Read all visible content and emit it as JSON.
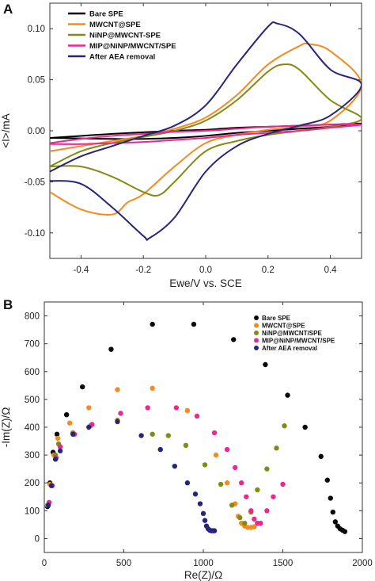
{
  "panels": [
    {
      "letter": "A",
      "type": "line",
      "xlabel": "Ewe/V vs. SCE",
      "ylabel": "<I>/mA",
      "xlim": [
        -0.5,
        0.5
      ],
      "ylim": [
        -0.125,
        0.125
      ],
      "xticks": [
        -0.4,
        -0.2,
        0.0,
        0.2,
        0.4
      ],
      "xtick_labels": [
        "-0.4",
        "-0.2",
        "0.0",
        "0.2",
        "0.4"
      ],
      "yticks": [
        -0.1,
        -0.05,
        0.0,
        0.05,
        0.1
      ],
      "ytick_labels": [
        "-0.10",
        "-0.05",
        "0.00",
        "0.05",
        "0.10"
      ],
      "legend_position": "top-left",
      "legend_style": "line",
      "grid": false,
      "series": [
        {
          "name": "Bare SPE",
          "color": "#000000",
          "x": [
            -0.5,
            -0.4,
            -0.3,
            -0.2,
            -0.1,
            0.0,
            0.05,
            0.1,
            0.2,
            0.3,
            0.4,
            0.5,
            0.4,
            0.3,
            0.2,
            0.1,
            0.0,
            -0.1,
            -0.2,
            -0.3,
            -0.4,
            -0.5
          ],
          "y": [
            -0.007,
            -0.005,
            -0.003,
            -0.0015,
            0.0,
            0.001,
            0.002,
            0.003,
            0.004,
            0.005,
            0.006,
            0.007,
            0.004,
            0.002,
            0.0,
            -0.002,
            -0.005,
            -0.007,
            -0.008,
            -0.008,
            -0.0075,
            -0.007
          ]
        },
        {
          "name": "MWCNT@SPE",
          "color": "#f68a1e",
          "x": [
            -0.5,
            -0.4,
            -0.3,
            -0.2,
            -0.1,
            0.0,
            0.1,
            0.2,
            0.3,
            0.33,
            0.4,
            0.5,
            0.4,
            0.3,
            0.2,
            0.1,
            0.0,
            -0.1,
            -0.2,
            -0.25,
            -0.3,
            -0.4,
            -0.5
          ],
          "y": [
            -0.02,
            -0.015,
            -0.01,
            -0.005,
            0.002,
            0.013,
            0.035,
            0.065,
            0.083,
            0.085,
            0.078,
            0.045,
            0.01,
            0.004,
            0.001,
            -0.004,
            -0.012,
            -0.035,
            -0.062,
            -0.07,
            -0.082,
            -0.077,
            -0.06
          ]
        },
        {
          "name": "NiNP@MWCNT-SPE",
          "color": "#828c12",
          "x": [
            -0.5,
            -0.4,
            -0.3,
            -0.2,
            -0.1,
            0.0,
            0.1,
            0.2,
            0.25,
            0.3,
            0.4,
            0.5,
            0.4,
            0.3,
            0.2,
            0.1,
            0.0,
            -0.1,
            -0.15,
            -0.2,
            -0.3,
            -0.4,
            -0.5
          ],
          "y": [
            -0.035,
            -0.02,
            -0.012,
            -0.006,
            0.0,
            0.01,
            0.03,
            0.058,
            0.065,
            0.06,
            0.03,
            0.012,
            0.004,
            0.0,
            -0.004,
            -0.01,
            -0.02,
            -0.05,
            -0.063,
            -0.06,
            -0.045,
            -0.035,
            -0.035
          ]
        },
        {
          "name": "MIP@NiNP/MWCNT/SPE",
          "color": "#ec2794",
          "x": [
            -0.5,
            -0.4,
            -0.3,
            -0.2,
            -0.1,
            0.0,
            0.1,
            0.2,
            0.3,
            0.4,
            0.5,
            0.4,
            0.3,
            0.2,
            0.1,
            0.0,
            -0.1,
            -0.2,
            -0.3,
            -0.4,
            -0.5
          ],
          "y": [
            -0.012,
            -0.008,
            -0.005,
            -0.003,
            -0.001,
            0.0,
            0.002,
            0.004,
            0.005,
            0.006,
            0.006,
            0.003,
            0.0,
            -0.002,
            -0.004,
            -0.007,
            -0.009,
            -0.011,
            -0.012,
            -0.013,
            -0.013
          ]
        },
        {
          "name": "After AEA removal",
          "color": "#26257e",
          "x": [
            -0.5,
            -0.4,
            -0.3,
            -0.2,
            -0.1,
            0.0,
            0.1,
            0.2,
            0.23,
            0.3,
            0.4,
            0.5,
            0.4,
            0.3,
            0.2,
            0.1,
            0.0,
            -0.1,
            -0.18,
            -0.2,
            -0.3,
            -0.4,
            -0.5
          ],
          "y": [
            -0.04,
            -0.025,
            -0.015,
            -0.005,
            0.005,
            0.025,
            0.065,
            0.102,
            0.105,
            0.095,
            0.06,
            0.045,
            0.015,
            0.005,
            -0.003,
            -0.015,
            -0.04,
            -0.085,
            -0.105,
            -0.103,
            -0.075,
            -0.052,
            -0.049
          ]
        }
      ]
    },
    {
      "letter": "B",
      "type": "scatter",
      "xlabel": "Re(Z)/Ω",
      "ylabel": "-Im(Z)/Ω",
      "xlim": [
        0,
        2000
      ],
      "ylim": [
        -50,
        850
      ],
      "xticks": [
        0,
        500,
        1000,
        1500,
        2000
      ],
      "xtick_labels": [
        "0",
        "500",
        "1000",
        "1500",
        "2000"
      ],
      "yticks": [
        0,
        100,
        200,
        300,
        400,
        500,
        600,
        700,
        800
      ],
      "ytick_labels": [
        "0",
        "100",
        "200",
        "300",
        "400",
        "500",
        "600",
        "700",
        "800"
      ],
      "legend_position": "top-right",
      "legend_style": "marker",
      "grid": false,
      "series": [
        {
          "name": "Bare SPE",
          "color": "#0a0a0a",
          "x": [
            20,
            35,
            55,
            80,
            140,
            240,
            420,
            680,
            940,
            1190,
            1390,
            1530,
            1640,
            1740,
            1780,
            1800,
            1815,
            1830,
            1845,
            1860,
            1875,
            1890
          ],
          "y": [
            115,
            200,
            310,
            375,
            445,
            545,
            680,
            770,
            770,
            715,
            625,
            515,
            400,
            295,
            210,
            145,
            95,
            60,
            45,
            35,
            30,
            25
          ]
        },
        {
          "name": "MWCNT@SPE",
          "color": "#f68a1e",
          "x": [
            20,
            35,
            60,
            85,
            160,
            280,
            460,
            680,
            900,
            1080,
            1150,
            1200,
            1220,
            1240,
            1260,
            1280,
            1300,
            1320
          ],
          "y": [
            120,
            195,
            300,
            360,
            415,
            470,
            535,
            540,
            460,
            300,
            200,
            125,
            80,
            55,
            45,
            40,
            40,
            42
          ]
        },
        {
          "name": "NiNP@MWCNT/SPE",
          "color": "#828c12",
          "x": [
            25,
            45,
            70,
            90,
            180,
            290,
            460,
            680,
            780,
            890,
            1010,
            1110,
            1180,
            1230,
            1260,
            1300,
            1340,
            1400,
            1460,
            1510
          ],
          "y": [
            120,
            190,
            300,
            340,
            380,
            405,
            425,
            375,
            370,
            335,
            265,
            195,
            120,
            75,
            55,
            95,
            175,
            250,
            325,
            405
          ]
        },
        {
          "name": "MIP@NiNP/MWCNT/SPE",
          "color": "#ec2794",
          "x": [
            30,
            50,
            75,
            100,
            190,
            300,
            480,
            650,
            830,
            960,
            1070,
            1150,
            1200,
            1240,
            1270,
            1300,
            1320,
            1340,
            1360,
            1400,
            1440,
            1500
          ],
          "y": [
            130,
            190,
            290,
            330,
            375,
            410,
            450,
            470,
            470,
            440,
            380,
            320,
            255,
            200,
            150,
            100,
            70,
            55,
            55,
            100,
            150,
            195
          ]
        },
        {
          "name": "After AEA removal",
          "color": "#26257e",
          "x": [
            25,
            45,
            70,
            100,
            180,
            280,
            460,
            610,
            730,
            820,
            900,
            950,
            980,
            1000,
            1010,
            1020,
            1030,
            1040,
            1050,
            1060,
            1070
          ],
          "y": [
            120,
            190,
            285,
            315,
            375,
            400,
            420,
            370,
            320,
            260,
            200,
            160,
            125,
            90,
            65,
            45,
            35,
            30,
            28,
            28,
            28
          ]
        }
      ]
    }
  ]
}
